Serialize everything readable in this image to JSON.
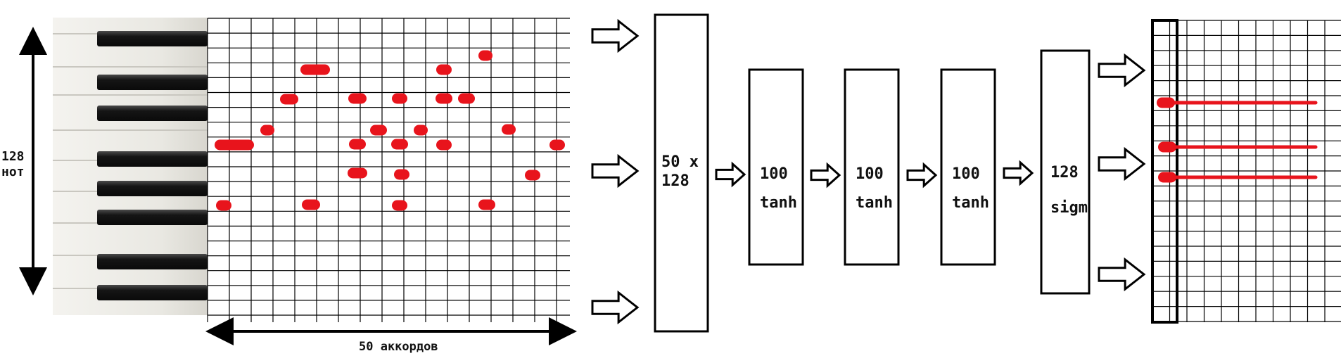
{
  "labels": {
    "notes_count": "128",
    "notes_unit": "нот",
    "chords": "50 аккордов"
  },
  "layers": [
    {
      "id": "input",
      "line1": "50 x",
      "line2": "128"
    },
    {
      "id": "hidden1",
      "line1": "100",
      "line2": "tanh"
    },
    {
      "id": "hidden2",
      "line1": "100",
      "line2": "tanh"
    },
    {
      "id": "hidden3",
      "line1": "100",
      "line2": "tanh"
    },
    {
      "id": "output",
      "line1": "128",
      "line2": "sigm"
    }
  ],
  "colors": {
    "note": "#e8141c",
    "grid": "#000000",
    "key_black": "#1b1b1b",
    "key_white": "#ecebe6"
  },
  "icons": [
    "right-arrow-icon",
    "vertical-double-arrow-icon",
    "horizontal-double-arrow-icon"
  ]
}
